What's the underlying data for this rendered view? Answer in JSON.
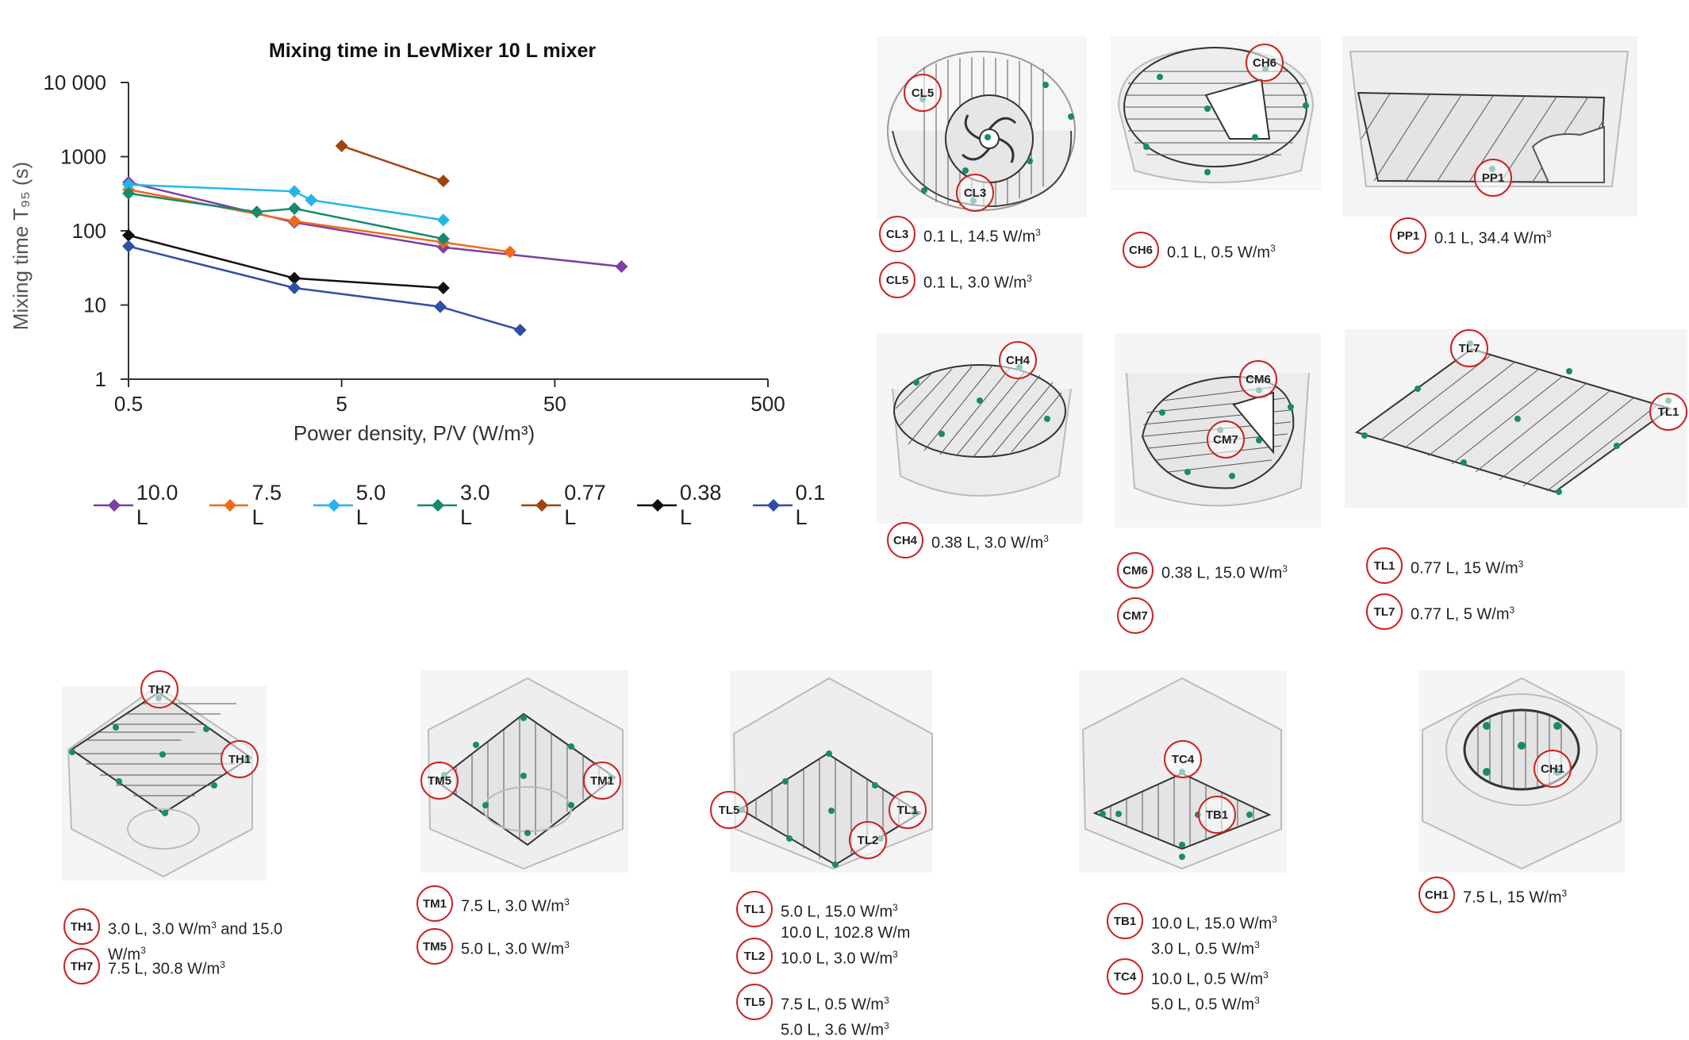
{
  "chart_data": {
    "type": "line",
    "title": "Mixing time in LevMixer 10 L mixer",
    "xlabel": "Power density, P/V (W/m³)",
    "ylabel": "Mixing time T₉₅ (s)",
    "x_scale": "log",
    "y_scale": "log",
    "xlim": [
      0.5,
      500
    ],
    "ylim": [
      1,
      10000
    ],
    "x_ticks": [
      "0.5",
      "5",
      "50",
      "500"
    ],
    "y_ticks": [
      "1",
      "10",
      "100",
      "1000",
      "10 000"
    ],
    "legend_position": "bottom",
    "series": [
      {
        "name": "10.0 L",
        "color": "#7b3fa6",
        "x": [
          0.5,
          3.0,
          15.0,
          102.8
        ],
        "y": [
          450,
          130,
          60,
          33
        ]
      },
      {
        "name": "7.5 L",
        "color": "#f06a1d",
        "x": [
          0.5,
          3.0,
          15.0,
          30.8
        ],
        "y": [
          360,
          135,
          70,
          52
        ]
      },
      {
        "name": "5.0 L",
        "color": "#25b6e8",
        "x": [
          0.5,
          3.0,
          3.6,
          15.0
        ],
        "y": [
          420,
          340,
          260,
          140
        ]
      },
      {
        "name": "3.0 L",
        "color": "#168a6a",
        "x": [
          0.5,
          2.0,
          3.0,
          15.0
        ],
        "y": [
          320,
          180,
          200,
          78
        ]
      },
      {
        "name": "0.77 L",
        "color": "#a0440f",
        "x": [
          5,
          15
        ],
        "y": [
          1400,
          470
        ]
      },
      {
        "name": "0.38 L",
        "color": "#111111",
        "x": [
          0.5,
          3.0,
          15.0
        ],
        "y": [
          87,
          23,
          17
        ]
      },
      {
        "name": "0.1 L",
        "color": "#2f4fa6",
        "x": [
          0.5,
          3.0,
          14.5,
          34.4
        ],
        "y": [
          62,
          17,
          9.5,
          4.6
        ]
      }
    ]
  },
  "panels": [
    {
      "id": "p-cl",
      "caps": [
        {
          "badge": "CL3",
          "text": "0.1 L, 14.5 W/m",
          "sup": "3"
        },
        {
          "badge": "CL5",
          "text": "0.1 L, 3.0 W/m",
          "sup": "3"
        }
      ],
      "marks": [
        "CL5",
        "CL3"
      ]
    },
    {
      "id": "p-ch6",
      "caps": [
        {
          "badge": "CH6",
          "text": "0.1 L, 0.5 W/m",
          "sup": "3"
        }
      ],
      "marks": [
        "CH6"
      ]
    },
    {
      "id": "p-pp1",
      "caps": [
        {
          "badge": "PP1",
          "text": "0.1 L, 34.4 W/m",
          "sup": "3"
        }
      ],
      "marks": [
        "PP1"
      ]
    },
    {
      "id": "p-ch4",
      "caps": [
        {
          "badge": "CH4",
          "text": "0.38 L, 3.0 W/m",
          "sup": "3"
        }
      ],
      "marks": [
        "CH4"
      ]
    },
    {
      "id": "p-cm",
      "caps": [
        {
          "badge": "CM6",
          "text": "0.38 L, 15.0 W/m",
          "sup": "3"
        },
        {
          "badge": "CM7",
          "text": "",
          "sup": ""
        }
      ],
      "marks": [
        "CM6",
        "CM7"
      ]
    },
    {
      "id": "p-tl",
      "caps": [
        {
          "badge": "TL1",
          "text": "0.77 L, 15 W/m",
          "sup": "3"
        },
        {
          "badge": "TL7",
          "text": "0.77 L, 5 W/m",
          "sup": "3"
        }
      ],
      "marks": [
        "TL7",
        "TL1"
      ]
    },
    {
      "id": "p-th",
      "caps": [
        {
          "badge": "TH1",
          "text": "3.0 L, 3.0 W/m",
          "sup": "3",
          "text2": " and 15.0",
          "line2": "W/m",
          "sup2": "3"
        },
        {
          "badge": "TH7",
          "text": "7.5 L, 30.8 W/m",
          "sup": "3"
        }
      ],
      "marks": [
        "TH7",
        "TH1"
      ]
    },
    {
      "id": "p-tm",
      "caps": [
        {
          "badge": "TM1",
          "text": "7.5 L, 3.0 W/m",
          "sup": "3"
        },
        {
          "badge": "TM5",
          "text": "5.0 L, 3.0 W/m",
          "sup": "3"
        }
      ],
      "marks": [
        "TM5",
        "TM1"
      ]
    },
    {
      "id": "p-tl2",
      "caps": [
        {
          "badge": "TL1",
          "text": "5.0 L, 15.0 W/m",
          "sup": "3",
          "line2": "10.0 L, 102.8 W/m",
          "sup2": ""
        },
        {
          "badge": "TL2",
          "text": "10.0 L, 3.0 W/m",
          "sup": "3"
        },
        {
          "badge": "TL5",
          "text": "7.5 L, 0.5 W/m",
          "sup": "3",
          "line2": "5.0 L,  3.6 W/m",
          "sup2": "3"
        }
      ],
      "marks": [
        "TL5",
        "TL1",
        "TL2"
      ]
    },
    {
      "id": "p-tb",
      "caps": [
        {
          "badge": "TB1",
          "text": "10.0 L, 15.0 W/m",
          "sup": "3",
          "line2": "3.0 L, 0.5 W/m",
          "sup2": "3"
        },
        {
          "badge": "TC4",
          "text": "10.0 L, 0.5 W/m",
          "sup": "3",
          "line2": "5.0 L, 0.5 W/m",
          "sup2": "3"
        }
      ],
      "marks": [
        "TC4",
        "TB1"
      ]
    },
    {
      "id": "p-ch1",
      "caps": [
        {
          "badge": "CH1",
          "text": "7.5 L, 15 W/m",
          "sup": "3"
        }
      ],
      "marks": [
        "CH1"
      ]
    }
  ]
}
